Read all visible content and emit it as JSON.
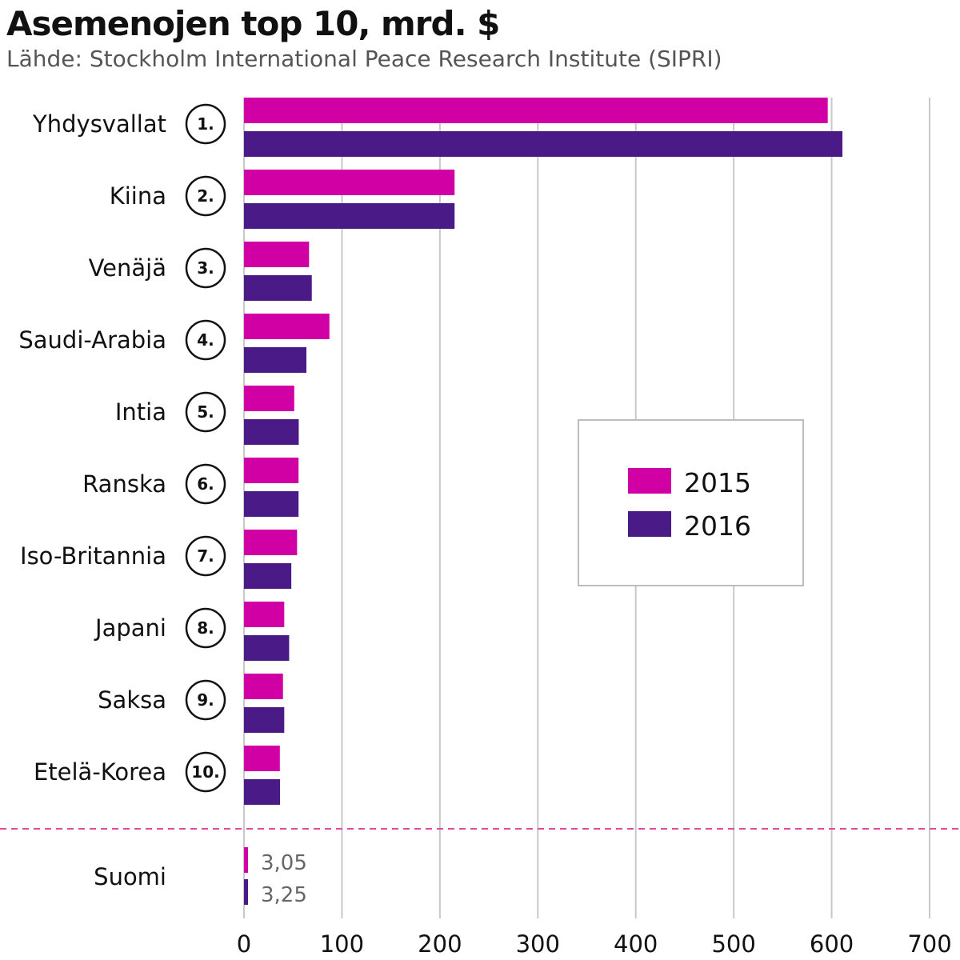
{
  "chart_data": {
    "type": "bar",
    "orientation": "horizontal",
    "title": "Asemenojen top 10, mrd. $",
    "subtitle": "Lähde: Stockholm International Peace Research Institute (SIPRI)",
    "categories": [
      "Yhdysvallat",
      "Kiina",
      "Venäjä",
      "Saudi-Arabia",
      "Intia",
      "Ranska",
      "Iso-Britannia",
      "Japani",
      "Saksa",
      "Etelä-Korea"
    ],
    "ranks": [
      "1.",
      "2.",
      "3.",
      "4.",
      "5.",
      "6.",
      "7.",
      "8.",
      "9.",
      "10."
    ],
    "series": [
      {
        "name": "2015",
        "color": "#d100a5",
        "values": [
          596,
          215,
          66.4,
          87.2,
          51.3,
          55.7,
          54.2,
          41.1,
          39.8,
          36.6
        ]
      },
      {
        "name": "2016",
        "color": "#4a1a86",
        "values": [
          611,
          215,
          69.2,
          63.7,
          55.9,
          55.7,
          48.3,
          46.1,
          41.1,
          36.8
        ]
      }
    ],
    "extra": {
      "category": "Suomi",
      "values": [
        3.05,
        3.25
      ],
      "value_labels": [
        "3,05",
        "3,25"
      ]
    },
    "xlim": [
      0,
      700
    ],
    "xticks": [
      0,
      100,
      200,
      300,
      400,
      500,
      600,
      700
    ],
    "grid": true,
    "legend": {
      "position": "center-right",
      "entries": [
        "2015",
        "2016"
      ]
    }
  }
}
